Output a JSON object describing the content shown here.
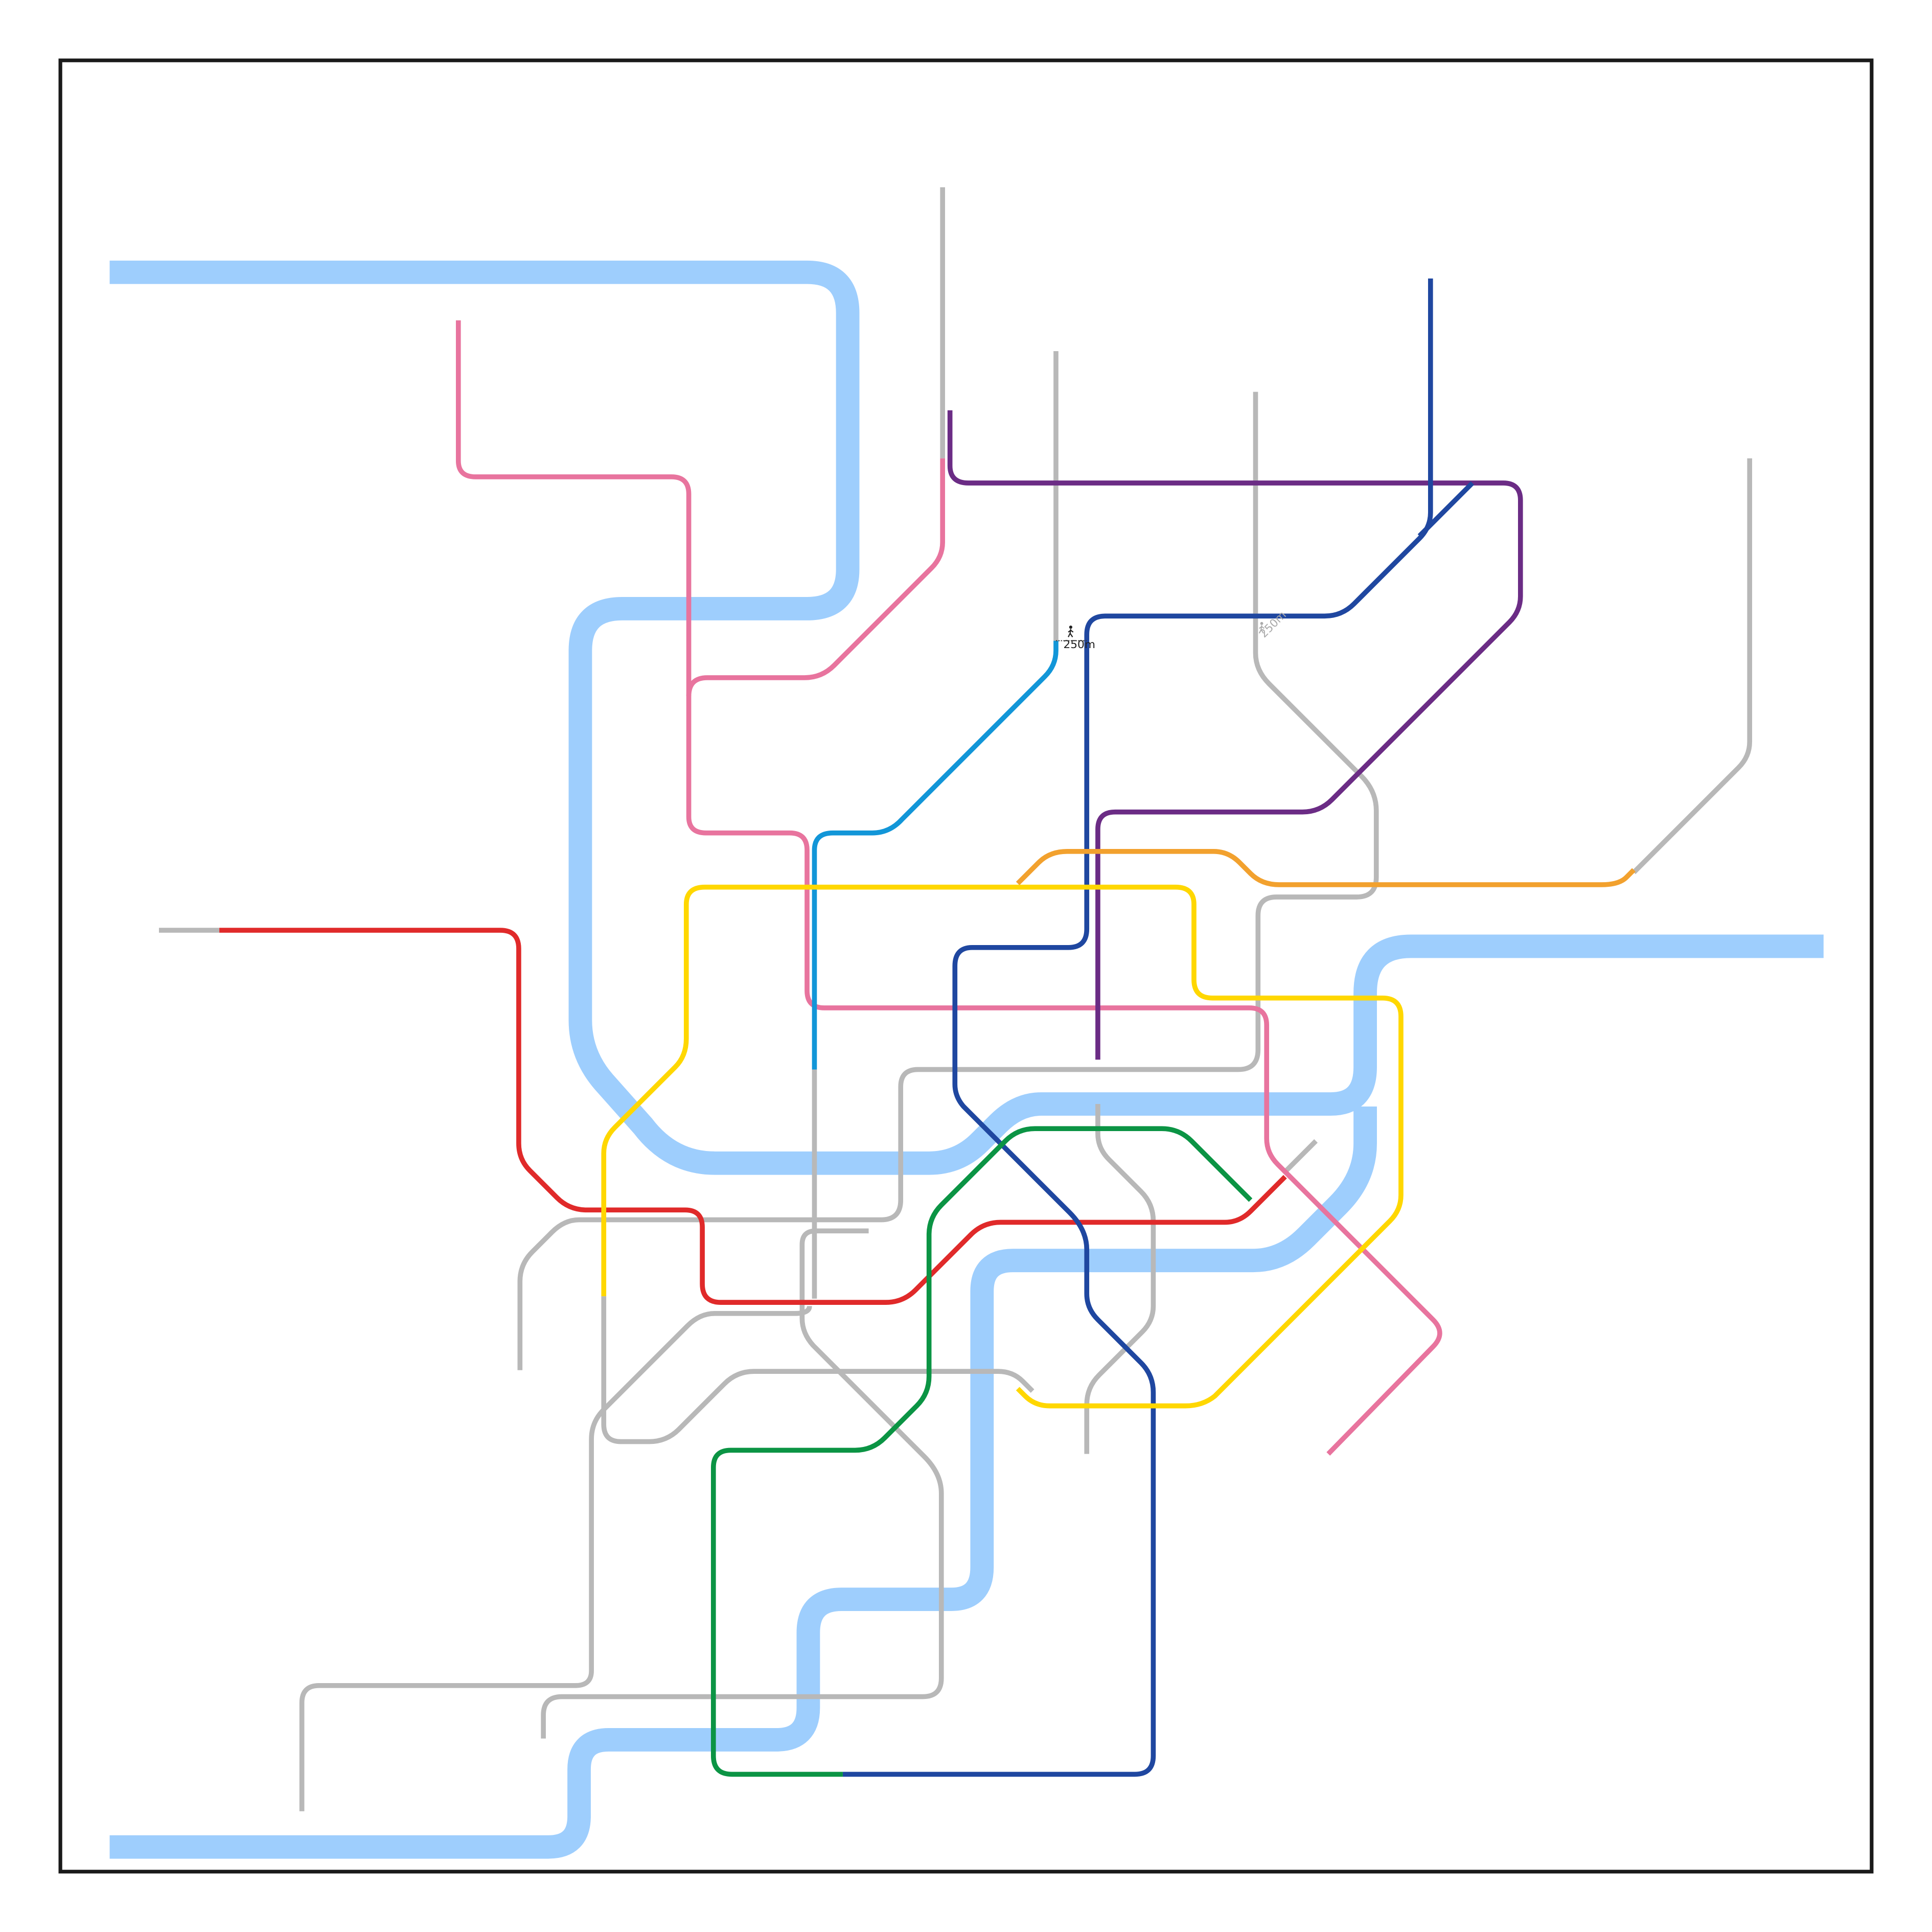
{
  "map": {
    "lines": [
      {
        "id": "red",
        "color": "#E02A2A"
      },
      {
        "id": "pink",
        "color": "#E8749E"
      },
      {
        "id": "purple",
        "color": "#6B2C85"
      },
      {
        "id": "navy",
        "color": "#1F47A0"
      },
      {
        "id": "cyan",
        "color": "#1296D8"
      },
      {
        "id": "orange",
        "color": "#F2A12E"
      },
      {
        "id": "yellow",
        "color": "#FFD700"
      },
      {
        "id": "green",
        "color": "#0B9444"
      },
      {
        "id": "grey",
        "color": "#B8B8B8"
      }
    ],
    "river_color": "#9ECEFD",
    "transfer_walk": {
      "distance_label": "250m",
      "icon": "pedestrian-icon"
    },
    "transfer_walk_faded": {
      "distance_label": "250m",
      "icon": "pedestrian-icon"
    }
  }
}
